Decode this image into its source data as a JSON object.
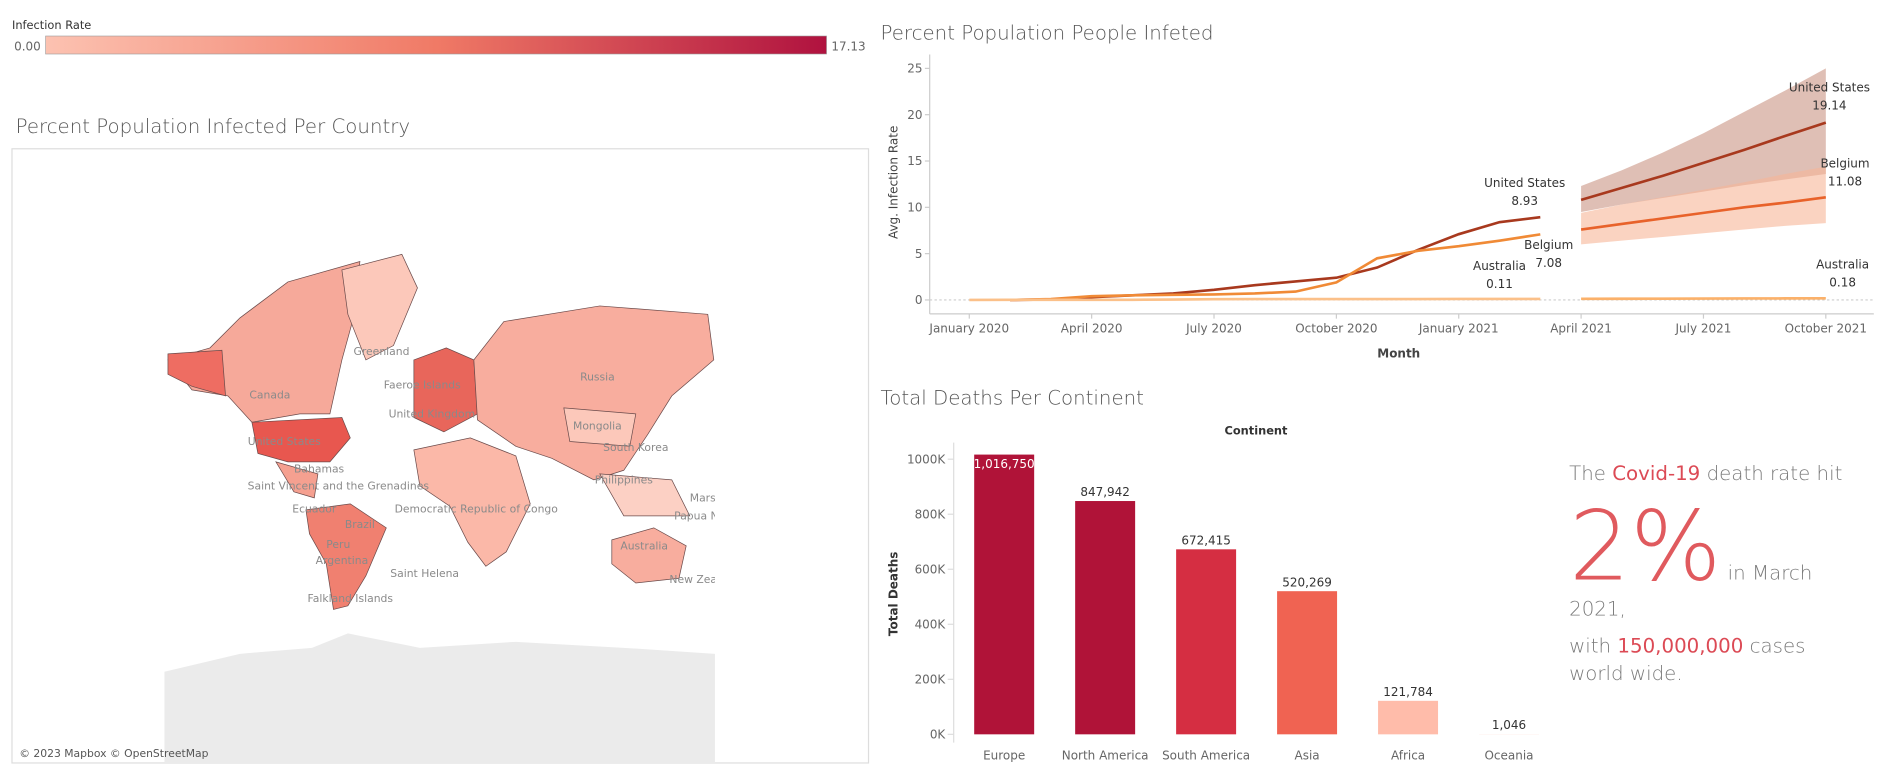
{
  "legend": {
    "title": "Infection Rate",
    "min": {
      "value": 0,
      "label": "0.00"
    },
    "max": 17.13,
    "colors": [
      "#fcc2b1",
      "#f07a66",
      "#b0123f"
    ]
  },
  "map": {
    "title": "Percent Population Infected Per Country",
    "labels": [
      "Greenland",
      "Canada",
      "Russia",
      "United States",
      "Faeroe Islands",
      "United Kingdom",
      "Mongolia",
      "South Korea",
      "Bahamas",
      "Saint Vincent and the Grenadines",
      "Democratic Republic of Congo",
      "Philippines",
      "Marshall Islands",
      "Ecuador",
      "Brazil",
      "Peru",
      "Argentina",
      "Australia",
      "New Zealand",
      "Saint Helena",
      "Falkland Islands",
      "Papua New Guinea"
    ],
    "attribution": "© 2023 Mapbox © OpenStreetMap"
  },
  "chart_data": [
    {
      "type": "line",
      "title": "Percent Population People Infeted",
      "x_label": "Month",
      "y_label": "Avg. Infection Rate",
      "x": [
        "2020-01",
        "2020-02",
        "2020-03",
        "2020-04",
        "2020-05",
        "2020-06",
        "2020-07",
        "2020-08",
        "2020-09",
        "2020-10",
        "2020-11",
        "2020-12",
        "2021-01",
        "2021-02",
        "2021-03",
        "2021-04",
        "2021-05",
        "2021-06",
        "2021-07",
        "2021-08",
        "2021-09",
        "2021-10"
      ],
      "xticks": [
        {
          "value": "2020-01",
          "label": "January 2020"
        },
        {
          "value": "2020-04",
          "label": "April 2020"
        },
        {
          "value": "2020-07",
          "label": "July 2020"
        },
        {
          "value": "2020-10",
          "label": "October 2020"
        },
        {
          "value": "2021-01",
          "label": "January 2021"
        },
        {
          "value": "2021-04",
          "label": "April 2021"
        },
        {
          "value": "2021-07",
          "label": "July 2021"
        },
        {
          "value": "2021-10",
          "label": "October 2021"
        }
      ],
      "ylim": [
        -1.5,
        26.5
      ],
      "yticks": [
        0,
        5,
        10,
        15,
        20,
        25
      ],
      "zero_line": true,
      "series": [
        {
          "name": "United States",
          "color": "#a8391e",
          "values": [
            null,
            0,
            0.05,
            0.3,
            0.5,
            0.7,
            1.1,
            1.6,
            2.0,
            2.4,
            3.5,
            5.4,
            7.1,
            8.4,
            8.93,
            null,
            null,
            null,
            null,
            null,
            null,
            null
          ]
        },
        {
          "name": "Belgium",
          "color": "#f08a36",
          "values": [
            null,
            0,
            0.1,
            0.4,
            0.5,
            0.55,
            0.6,
            0.7,
            0.9,
            1.9,
            4.5,
            5.3,
            5.8,
            6.4,
            7.08,
            null,
            null,
            null,
            null,
            null,
            null,
            null
          ]
        },
        {
          "name": "Australia",
          "color": "#fbc089",
          "values": [
            0,
            0.01,
            0.01,
            0.02,
            0.02,
            0.04,
            0.08,
            0.1,
            0.1,
            0.1,
            0.1,
            0.1,
            0.11,
            0.11,
            0.11,
            null,
            null,
            null,
            null,
            null,
            null,
            null
          ]
        },
        {
          "name": "United States",
          "color": "#a8391e",
          "band_color": "#c99484",
          "values": [
            null,
            null,
            null,
            null,
            null,
            null,
            null,
            null,
            null,
            null,
            null,
            null,
            null,
            null,
            null,
            10.8,
            12.1,
            13.4,
            14.8,
            16.2,
            17.7,
            19.14
          ],
          "upper": [
            null,
            null,
            null,
            null,
            null,
            null,
            null,
            null,
            null,
            null,
            null,
            null,
            null,
            null,
            null,
            12.3,
            14.0,
            15.9,
            18.0,
            20.3,
            22.6,
            25.0
          ],
          "lower": [
            null,
            null,
            null,
            null,
            null,
            null,
            null,
            null,
            null,
            null,
            null,
            null,
            null,
            null,
            null,
            9.5,
            10.3,
            11.0,
            11.7,
            12.4,
            13.0,
            13.6
          ]
        },
        {
          "name": "Belgium",
          "color": "#e8622a",
          "band_color": "#f7b597",
          "values": [
            null,
            null,
            null,
            null,
            null,
            null,
            null,
            null,
            null,
            null,
            null,
            null,
            null,
            null,
            null,
            7.6,
            8.2,
            8.8,
            9.4,
            10.0,
            10.5,
            11.08
          ],
          "upper": [
            null,
            null,
            null,
            null,
            null,
            null,
            null,
            null,
            null,
            null,
            null,
            null,
            null,
            null,
            null,
            9.4,
            10.3,
            11.1,
            11.9,
            12.7,
            13.6,
            14.4
          ],
          "lower": [
            null,
            null,
            null,
            null,
            null,
            null,
            null,
            null,
            null,
            null,
            null,
            null,
            null,
            null,
            null,
            6.0,
            6.4,
            6.8,
            7.2,
            7.6,
            8.0,
            8.3
          ]
        },
        {
          "name": "Australia",
          "color": "#fbb16a",
          "values": [
            null,
            null,
            null,
            null,
            null,
            null,
            null,
            null,
            null,
            null,
            null,
            null,
            null,
            null,
            null,
            0.12,
            0.13,
            0.14,
            0.15,
            0.16,
            0.17,
            0.18
          ]
        }
      ]
    },
    {
      "type": "bar",
      "title": "Total Deaths Per Continent",
      "header": "Continent",
      "y_label": "Total Deaths",
      "categories": [
        "Europe",
        "North America",
        "South America",
        "Asia",
        "Africa",
        "Oceania"
      ],
      "values": [
        1016750,
        847942,
        672415,
        520269,
        121784,
        1046
      ],
      "value_labels": [
        "1,016,750",
        "847,942",
        "672,415",
        "520,269",
        "121,784",
        "1,046"
      ],
      "colors": [
        "#b01338",
        "#b01338",
        "#d52e42",
        "#f06352",
        "#ffbcaa",
        "#ffe9e2"
      ],
      "ylim": [
        -30000,
        1060000
      ],
      "yticks": [
        {
          "value": 0,
          "label": "0K"
        },
        {
          "value": 200000,
          "label": "200K"
        },
        {
          "value": 400000,
          "label": "400K"
        },
        {
          "value": 600000,
          "label": "600K"
        },
        {
          "value": 800000,
          "label": "800K"
        },
        {
          "value": 1000000,
          "label": "1000K"
        }
      ]
    }
  ],
  "callout": {
    "lead": "The",
    "highlight": "Covid-19",
    "mid": "death rate hit",
    "big": "2%",
    "date": "in March 2021,",
    "with": "with",
    "cases": "150,000,000",
    "tail": "cases world wide."
  }
}
